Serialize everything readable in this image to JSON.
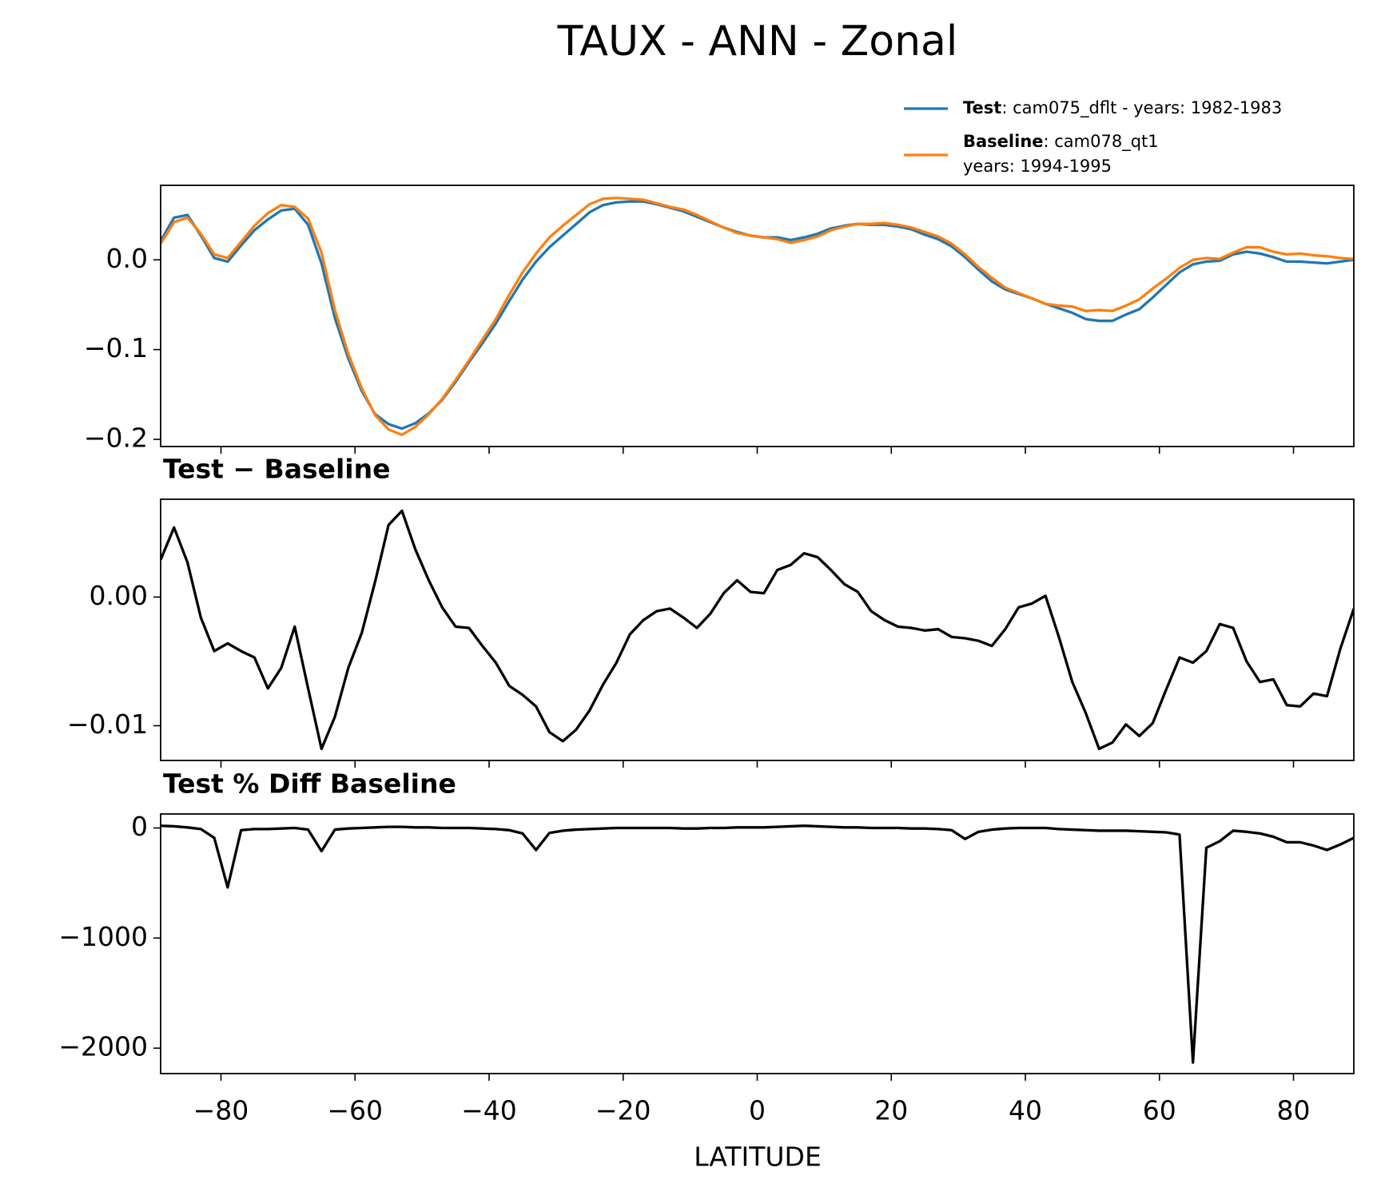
{
  "title": "TAUX - ANN - Zonal",
  "xlabel": "LATITUDE",
  "x": [
    -89,
    -87,
    -85,
    -83,
    -81,
    -79,
    -77,
    -75,
    -73,
    -71,
    -69,
    -67,
    -65,
    -63,
    -61,
    -59,
    -57,
    -55,
    -53,
    -51,
    -49,
    -47,
    -45,
    -43,
    -41,
    -39,
    -37,
    -35,
    -33,
    -31,
    -29,
    -27,
    -25,
    -23,
    -21,
    -19,
    -17,
    -15,
    -13,
    -11,
    -9,
    -7,
    -5,
    -3,
    -1,
    1,
    3,
    5,
    7,
    9,
    11,
    13,
    15,
    17,
    19,
    21,
    23,
    25,
    27,
    29,
    31,
    33,
    35,
    37,
    39,
    41,
    43,
    45,
    47,
    49,
    51,
    53,
    55,
    57,
    59,
    61,
    63,
    65,
    67,
    69,
    71,
    73,
    75,
    77,
    79,
    81,
    83,
    85,
    87,
    89
  ],
  "xlim": [
    -89,
    89
  ],
  "xticks": [
    {
      "value": -80,
      "label": "−80"
    },
    {
      "value": -60,
      "label": "−60"
    },
    {
      "value": -40,
      "label": "−40"
    },
    {
      "value": -20,
      "label": "−20"
    },
    0,
    20,
    40,
    60,
    80
  ],
  "chart_data": [
    {
      "type": "line",
      "ylim": [
        -0.208,
        0.083
      ],
      "yticks": [
        {
          "value": -0.2,
          "label": "−0.2"
        },
        {
          "value": -0.1,
          "label": "−0.1"
        },
        {
          "value": 0.0,
          "label": "0.0"
        }
      ],
      "legend": "upper right",
      "series": [
        {
          "name": "Test",
          "legend_text": [
            ": cam075_dflt - years: 1982-1983"
          ],
          "color": "#1f77b4",
          "values": [
            0.021,
            0.047,
            0.05,
            0.027,
            0.002,
            -0.002,
            0.016,
            0.033,
            0.045,
            0.055,
            0.057,
            0.039,
            -0.004,
            -0.065,
            -0.11,
            -0.146,
            -0.172,
            -0.183,
            -0.188,
            -0.182,
            -0.171,
            -0.156,
            -0.136,
            -0.114,
            -0.093,
            -0.071,
            -0.046,
            -0.022,
            -0.002,
            0.014,
            0.027,
            0.04,
            0.053,
            0.061,
            0.064,
            0.065,
            0.065,
            0.062,
            0.058,
            0.054,
            0.048,
            0.042,
            0.036,
            0.031,
            0.027,
            0.025,
            0.025,
            0.022,
            0.025,
            0.029,
            0.035,
            0.038,
            0.04,
            0.039,
            0.039,
            0.037,
            0.034,
            0.028,
            0.023,
            0.015,
            0.003,
            -0.011,
            -0.024,
            -0.033,
            -0.038,
            -0.043,
            -0.049,
            -0.054,
            -0.059,
            -0.066,
            -0.068,
            -0.068,
            -0.061,
            -0.055,
            -0.042,
            -0.028,
            -0.014,
            -0.005,
            -0.002,
            -0.001,
            0.006,
            0.009,
            0.007,
            0.003,
            -0.002,
            -0.002,
            -0.003,
            -0.004,
            -0.002,
            0.0
          ]
        },
        {
          "name": "Baseline",
          "legend_text": [
            ": cam078_qt1",
            "years: 1994-1995"
          ],
          "color": "#ff7f0e",
          "values": [
            0.018,
            0.042,
            0.047,
            0.029,
            0.006,
            0.002,
            0.02,
            0.038,
            0.052,
            0.061,
            0.059,
            0.046,
            0.008,
            -0.056,
            -0.105,
            -0.143,
            -0.173,
            -0.189,
            -0.195,
            -0.186,
            -0.172,
            -0.155,
            -0.134,
            -0.112,
            -0.089,
            -0.066,
            -0.039,
            -0.014,
            0.007,
            0.025,
            0.038,
            0.05,
            0.062,
            0.068,
            0.069,
            0.068,
            0.067,
            0.063,
            0.059,
            0.056,
            0.05,
            0.043,
            0.036,
            0.03,
            0.027,
            0.025,
            0.023,
            0.019,
            0.022,
            0.026,
            0.033,
            0.037,
            0.04,
            0.04,
            0.041,
            0.039,
            0.036,
            0.031,
            0.026,
            0.018,
            0.006,
            -0.008,
            -0.02,
            -0.031,
            -0.037,
            -0.043,
            -0.049,
            -0.051,
            -0.052,
            -0.057,
            -0.056,
            -0.057,
            -0.051,
            -0.044,
            -0.032,
            -0.021,
            -0.009,
            0.0,
            0.002,
            0.001,
            0.008,
            0.014,
            0.014,
            0.009,
            0.006,
            0.007,
            0.005,
            0.004,
            0.002,
            0.001
          ]
        }
      ]
    },
    {
      "type": "line",
      "title": "Test − Baseline",
      "ylim": [
        -0.0127,
        0.0076
      ],
      "yticks": [
        {
          "value": -0.01,
          "label": "−0.01"
        },
        {
          "value": 0.0,
          "label": "0.00"
        }
      ],
      "series": [
        {
          "color": "#000000",
          "values": [
            0.0029,
            0.0054,
            0.0027,
            -0.0016,
            -0.0042,
            -0.0036,
            -0.0042,
            -0.0047,
            -0.0071,
            -0.0055,
            -0.0023,
            -0.0071,
            -0.0118,
            -0.0093,
            -0.0055,
            -0.0028,
            0.0012,
            0.0056,
            0.0067,
            0.0037,
            0.0013,
            -0.0008,
            -0.0023,
            -0.0024,
            -0.0038,
            -0.0051,
            -0.0069,
            -0.0076,
            -0.0085,
            -0.0105,
            -0.0112,
            -0.0103,
            -0.0088,
            -0.0068,
            -0.0051,
            -0.0029,
            -0.0018,
            -0.0011,
            -0.0009,
            -0.0016,
            -0.0024,
            -0.0013,
            0.0003,
            0.0013,
            0.0004,
            0.0003,
            0.0021,
            0.0025,
            0.0034,
            0.0031,
            0.0021,
            0.001,
            0.0004,
            -0.0011,
            -0.0018,
            -0.0023,
            -0.0024,
            -0.0026,
            -0.0025,
            -0.0031,
            -0.0032,
            -0.0034,
            -0.0038,
            -0.0025,
            -0.0008,
            -0.0005,
            0.0001,
            -0.0031,
            -0.0066,
            -0.009,
            -0.0118,
            -0.0113,
            -0.0099,
            -0.0108,
            -0.0098,
            -0.0072,
            -0.0047,
            -0.0051,
            -0.0042,
            -0.0021,
            -0.0024,
            -0.005,
            -0.0066,
            -0.0064,
            -0.0084,
            -0.0085,
            -0.0075,
            -0.0077,
            -0.004,
            -0.0009
          ]
        }
      ]
    },
    {
      "type": "line",
      "title": "Test % Diff Baseline",
      "ylim": [
        -2231,
        127
      ],
      "yticks": [
        {
          "value": -2000,
          "label": "−2000"
        },
        {
          "value": -1000,
          "label": "−1000"
        },
        0
      ],
      "series": [
        {
          "color": "#000000",
          "values": [
            20,
            15,
            5,
            -10,
            -90,
            -540,
            -20,
            -10,
            -10,
            -5,
            0,
            -15,
            -210,
            -15,
            -5,
            0,
            5,
            10,
            10,
            5,
            5,
            0,
            0,
            0,
            -5,
            -10,
            -20,
            -50,
            -200,
            -45,
            -25,
            -15,
            -10,
            -5,
            0,
            0,
            0,
            0,
            0,
            -5,
            -5,
            0,
            0,
            5,
            5,
            5,
            10,
            15,
            20,
            15,
            10,
            5,
            5,
            0,
            0,
            0,
            -5,
            -5,
            -10,
            -20,
            -100,
            -35,
            -15,
            -5,
            0,
            0,
            0,
            -10,
            -15,
            -20,
            -25,
            -25,
            -25,
            -30,
            -35,
            -40,
            -60,
            -2130,
            -180,
            -120,
            -25,
            -35,
            -50,
            -80,
            -130,
            -130,
            -160,
            -200,
            -150,
            -90
          ]
        }
      ]
    }
  ]
}
